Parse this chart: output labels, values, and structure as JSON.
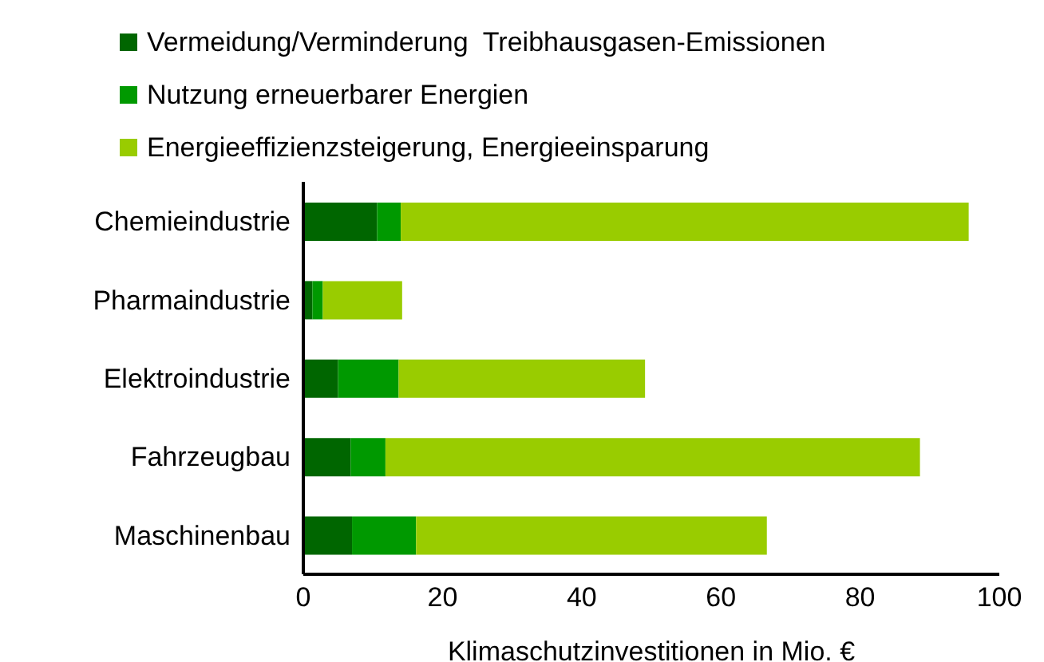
{
  "chart_data": {
    "type": "bar",
    "orientation": "horizontal",
    "stacked": true,
    "xlabel": "Klimaschutzinvestitionen in Mio. €",
    "categories": [
      "Chemieindustrie",
      "Pharmaindustrie",
      "Elektroindustrie",
      "Fahrzeugbau",
      "Maschinenbau"
    ],
    "series": [
      {
        "name": "Vermeidung/Verminderung  Treibhausgasen-Emissionen",
        "color": "#006600",
        "values": [
          10.6,
          1.3,
          5.0,
          6.8,
          7.0
        ]
      },
      {
        "name": "Nutzung erneuerbarer Energien",
        "color": "#009900",
        "values": [
          3.4,
          1.5,
          8.7,
          5.0,
          9.2
        ]
      },
      {
        "name": "Energieeffizienzsteigerung, Energieeinsparung",
        "color": "#99cc00",
        "values": [
          81.6,
          11.4,
          35.4,
          76.8,
          50.4
        ]
      }
    ],
    "xlim": [
      0,
      100
    ],
    "xticks": [
      0,
      20,
      40,
      60,
      80,
      100
    ],
    "grid": false,
    "legend": "top"
  }
}
